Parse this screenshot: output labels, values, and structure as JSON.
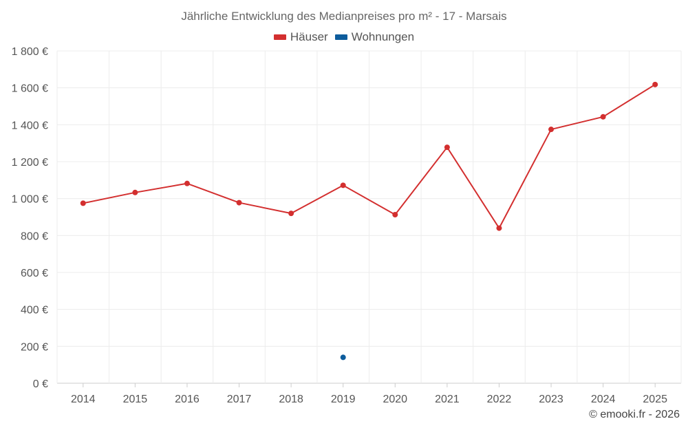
{
  "chart_data": {
    "type": "line",
    "title": "Jährliche Entwicklung des Medianpreises pro m² - 17 - Marsais",
    "categories": [
      "2014",
      "2015",
      "2016",
      "2017",
      "2018",
      "2019",
      "2020",
      "2021",
      "2022",
      "2023",
      "2024",
      "2025"
    ],
    "y_tick_labels": [
      "0 €",
      "200 €",
      "400 €",
      "600 €",
      "800 €",
      "1 000 €",
      "1 200 €",
      "1 400 €",
      "1 600 €",
      "1 800 €"
    ],
    "ylim": [
      0,
      1800
    ],
    "grid": true,
    "legend_position": "top-center",
    "series": [
      {
        "name": "Häuser",
        "color": "#d32f2f",
        "values": [
          975,
          1033,
          1082,
          978,
          920,
          1072,
          913,
          1278,
          840,
          1375,
          1443,
          1618
        ]
      },
      {
        "name": "Wohnungen",
        "color": "#0d5c9c",
        "values": [
          null,
          null,
          null,
          null,
          null,
          140,
          null,
          null,
          null,
          null,
          null,
          null
        ]
      }
    ]
  },
  "credit": "© emooki.fr - 2026"
}
